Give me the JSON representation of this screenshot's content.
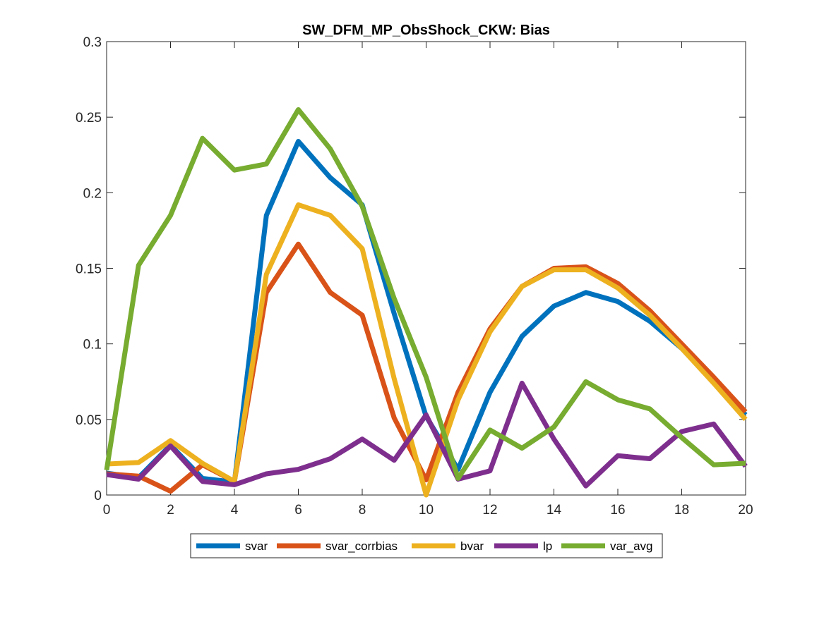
{
  "chart_data": {
    "type": "line",
    "title": "SW_DFM_MP_ObsShock_CKW: Bias",
    "xlabel": "",
    "ylabel": "",
    "xlim": [
      0,
      20
    ],
    "ylim": [
      0,
      0.3
    ],
    "xticks": [
      0,
      2,
      4,
      6,
      8,
      10,
      12,
      14,
      16,
      18,
      20
    ],
    "xtick_labels": [
      "0",
      "2",
      "4",
      "6",
      "8",
      "10",
      "12",
      "14",
      "16",
      "18",
      "20"
    ],
    "yticks": [
      0,
      0.05,
      0.1,
      0.15,
      0.2,
      0.25,
      0.3
    ],
    "ytick_labels": [
      "0",
      "0.05",
      "0.1",
      "0.15",
      "0.2",
      "0.25",
      "0.3"
    ],
    "grid": false,
    "legend_position": "bottom-outside",
    "x": [
      0,
      1,
      2,
      3,
      4,
      5,
      6,
      7,
      8,
      9,
      10,
      11,
      12,
      13,
      14,
      15,
      16,
      17,
      18,
      19,
      20
    ],
    "series": [
      {
        "name": "svar",
        "color": "#0072BD",
        "values": [
          0.0145,
          0.0115,
          0.033,
          0.011,
          0.0085,
          0.185,
          0.234,
          0.21,
          0.192,
          0.12,
          0.052,
          0.017,
          0.068,
          0.105,
          0.125,
          0.134,
          0.128,
          0.115,
          0.097,
          0.075,
          0.053
        ]
      },
      {
        "name": "svar_corrbias",
        "color": "#D95319",
        "values": [
          0.014,
          0.0125,
          0.0025,
          0.02,
          0.009,
          0.134,
          0.166,
          0.134,
          0.119,
          0.051,
          0.01,
          0.068,
          0.11,
          0.138,
          0.15,
          0.151,
          0.14,
          0.122,
          0.1,
          0.078,
          0.055
        ]
      },
      {
        "name": "bvar",
        "color": "#EDB120",
        "values": [
          0.0205,
          0.0215,
          0.036,
          0.021,
          0.009,
          0.146,
          0.192,
          0.185,
          0.163,
          0.077,
          0.0,
          0.063,
          0.108,
          0.138,
          0.149,
          0.149,
          0.137,
          0.119,
          0.097,
          0.074,
          0.05
        ]
      },
      {
        "name": "lp",
        "color": "#7E2F8E",
        "values": [
          0.0135,
          0.0105,
          0.0325,
          0.009,
          0.0068,
          0.014,
          0.017,
          0.024,
          0.037,
          0.023,
          0.053,
          0.0105,
          0.016,
          0.074,
          0.037,
          0.006,
          0.026,
          0.024,
          0.042,
          0.047,
          0.019
        ]
      },
      {
        "name": "var_avg",
        "color": "#77AC30",
        "values": [
          0.0165,
          0.152,
          0.185,
          0.236,
          0.215,
          0.219,
          0.255,
          0.229,
          0.191,
          0.13,
          0.078,
          0.011,
          0.043,
          0.031,
          0.045,
          0.075,
          0.063,
          0.057,
          0.038,
          0.02,
          0.021
        ]
      }
    ]
  }
}
